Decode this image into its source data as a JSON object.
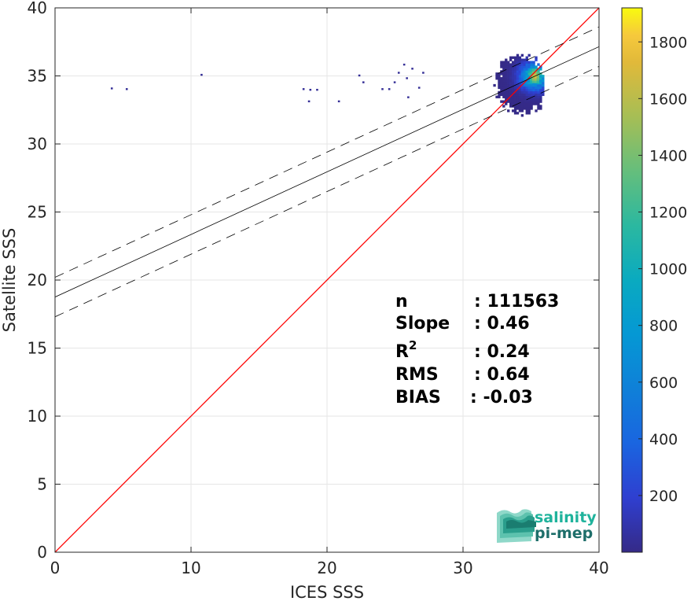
{
  "chart_data": {
    "type": "heatmap",
    "title": "",
    "xlabel": "ICES SSS",
    "ylabel": "Satellite SSS",
    "xlim": [
      0,
      40
    ],
    "ylim": [
      0,
      40
    ],
    "xticks": [
      0,
      10,
      20,
      30,
      40
    ],
    "yticks": [
      0,
      5,
      10,
      15,
      20,
      25,
      30,
      35,
      40
    ],
    "grid": true,
    "identity_line": {
      "from": [
        0,
        0
      ],
      "to": [
        40,
        40
      ],
      "color": "#ff0000"
    },
    "regression": {
      "slope": 0.46,
      "intercept": 18.75,
      "band_offset": 1.45,
      "color": "#000000"
    },
    "colorbar": {
      "min": 0,
      "max": 1920,
      "ticks": [
        200,
        400,
        600,
        800,
        1000,
        1200,
        1400,
        1600,
        1800
      ],
      "colormap": "parula"
    },
    "density_core": {
      "x": 35.2,
      "y": 34.9
    },
    "isolated_points": [
      {
        "x": 4.1,
        "y": 34.15
      },
      {
        "x": 5.2,
        "y": 34.1
      },
      {
        "x": 10.7,
        "y": 35.15
      },
      {
        "x": 18.2,
        "y": 34.1
      },
      {
        "x": 18.7,
        "y": 34.05
      },
      {
        "x": 19.2,
        "y": 34.05
      },
      {
        "x": 18.6,
        "y": 33.2
      },
      {
        "x": 20.8,
        "y": 33.2
      },
      {
        "x": 22.3,
        "y": 35.1
      },
      {
        "x": 22.6,
        "y": 34.6
      },
      {
        "x": 24.0,
        "y": 34.1
      },
      {
        "x": 24.5,
        "y": 34.1
      },
      {
        "x": 25.2,
        "y": 35.3
      },
      {
        "x": 25.6,
        "y": 35.9
      },
      {
        "x": 25.8,
        "y": 34.9
      },
      {
        "x": 26.2,
        "y": 35.6
      },
      {
        "x": 27.0,
        "y": 35.3
      },
      {
        "x": 25.9,
        "y": 33.5
      },
      {
        "x": 24.9,
        "y": 34.6
      },
      {
        "x": 26.7,
        "y": 34.2
      }
    ],
    "stats": [
      {
        "label": "n",
        "value": ": 111563"
      },
      {
        "label": "Slope",
        "value": ": 0.46"
      },
      {
        "label": "R",
        "sup": "2",
        "value": ": 0.24"
      },
      {
        "label": "RMS",
        "value": ": 0.64"
      },
      {
        "label": "BIAS",
        "value": ": -0.03"
      }
    ]
  },
  "logo": {
    "line1": "salinity",
    "line2": "pi-mep"
  }
}
